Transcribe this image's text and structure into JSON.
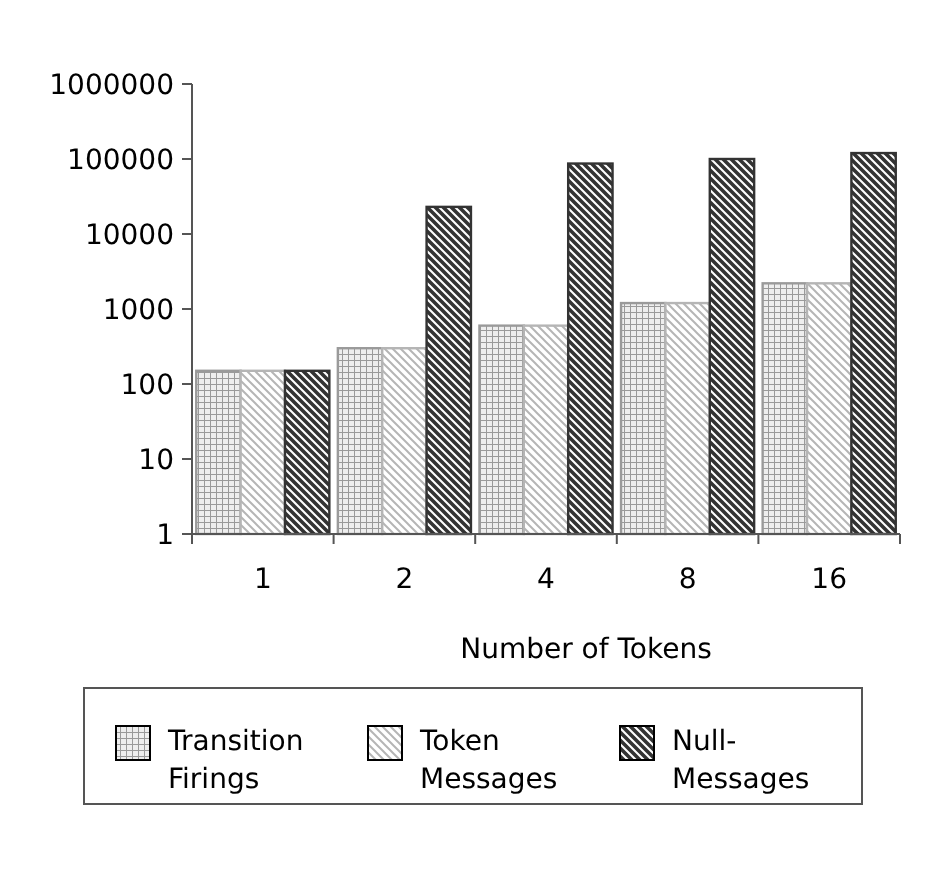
{
  "chart_data": {
    "type": "bar",
    "xlabel": "Number of Tokens",
    "categories": [
      "1",
      "2",
      "4",
      "8",
      "16"
    ],
    "series": [
      {
        "name": "Transition Firings",
        "color": "#9a9a9a",
        "values": [
          150,
          300,
          600,
          1200,
          2200
        ]
      },
      {
        "name": "Token Messages",
        "color": "#b5b5b5",
        "values": [
          150,
          300,
          600,
          1200,
          2200
        ]
      },
      {
        "name": "Null-Messages",
        "color": "#333333",
        "values": [
          150,
          23000,
          87000,
          100000,
          120000
        ]
      }
    ],
    "log": true,
    "ylim": [
      1,
      1000000
    ],
    "yticks": [
      1,
      10,
      100,
      1000,
      10000,
      100000,
      1000000
    ],
    "grid": false,
    "legend": "bottom"
  }
}
